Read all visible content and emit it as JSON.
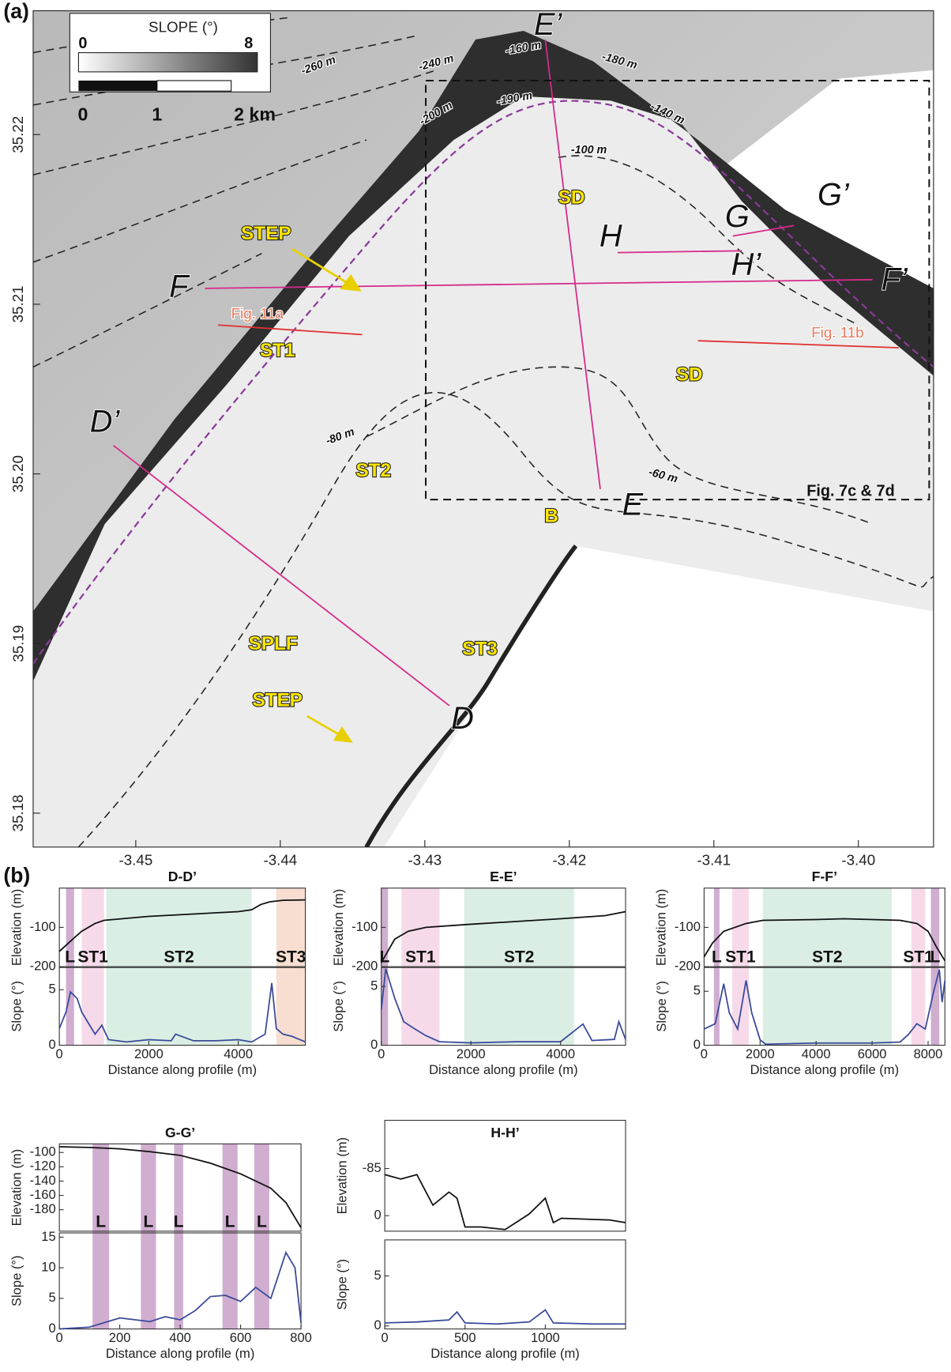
{
  "panel_a": {
    "label": "(a)",
    "colorbar": {
      "title": "SLOPE (°)",
      "min": 0,
      "max": 8
    },
    "scalebar": [
      "0",
      "1",
      "2 km"
    ],
    "xlim": [
      -3.4571,
      -3.3948
    ],
    "xticks": [
      -3.45,
      -3.44,
      -3.43,
      -3.42,
      -3.41,
      {
        "value": -3.4,
        "label": "-3.40"
      }
    ],
    "ylim": [
      35.178,
      35.2273
    ],
    "yticks": [
      35.22,
      35.21,
      {
        "value": 35.2,
        "label": "35.20"
      },
      35.19,
      35.18
    ],
    "labels": [
      "E’",
      "G’",
      "G",
      "H",
      "H’",
      "F",
      "F’",
      "D’",
      "D",
      "E",
      "STEP",
      "STEP",
      "SD",
      "SD",
      "ST1",
      "ST2",
      "ST3",
      "SPLF",
      "B",
      "Fig. 11a",
      "Fig. 11b",
      "Fig. 7c & 7d"
    ],
    "contours": [
      "-260 m",
      "-240 m",
      "-160 m",
      "-180 m",
      "-200 m",
      "-190 m",
      "-140 m",
      "-100 m",
      "-80 m",
      "-60 m"
    ]
  },
  "panel_b": {
    "label": "(b)"
  },
  "chart_data": [
    {
      "type": "profile",
      "title": "D-D’",
      "x_label": "Distance along profile (m)",
      "xlim": [
        0,
        5500
      ],
      "xticks": [
        0,
        2000,
        4000
      ],
      "elevation": {
        "y_label": "Elevation (m)",
        "ylim": [
          -200,
          0
        ],
        "yticks": [
          -200,
          -100
        ],
        "color": "#111111",
        "x": [
          0,
          300,
          500,
          800,
          1000,
          2000,
          3000,
          4000,
          4300,
          4500,
          4700,
          5000,
          5500
        ],
        "values": [
          -161,
          -130,
          -110,
          -90,
          -82,
          -72,
          -66,
          -60,
          -55,
          -42,
          -35,
          -31,
          -30
        ]
      },
      "slope": {
        "y_label": "Slope (°)",
        "ylim": [
          0,
          7
        ],
        "yticks": [
          0,
          5
        ],
        "color": "#3a4a9a",
        "x": [
          0,
          150,
          250,
          400,
          500,
          650,
          800,
          950,
          1100,
          1500,
          2000,
          2500,
          2600,
          3000,
          3500,
          4000,
          4300,
          4600,
          4750,
          4850,
          5000,
          5200,
          5500
        ],
        "values": [
          1.5,
          3,
          4.8,
          4.2,
          3,
          2,
          1,
          1.8,
          0.5,
          0.3,
          0.5,
          0.4,
          1,
          0.4,
          0.4,
          0.5,
          0.3,
          1,
          5.6,
          1.5,
          1,
          0.8,
          0.3
        ]
      },
      "bands": [
        {
          "start": 150,
          "end": 330,
          "color": "#c8a0c8",
          "label": "L"
        },
        {
          "start": 500,
          "end": 1000,
          "color": "#f5d3e6",
          "label": "ST1"
        },
        {
          "start": 1050,
          "end": 4300,
          "color": "#d3ebdf",
          "label": "ST2"
        },
        {
          "start": 4850,
          "end": 5500,
          "color": "#f6d8c8",
          "label": "ST3"
        }
      ]
    },
    {
      "type": "profile",
      "title": "E-E’",
      "x_label": "Distance along profile (m)",
      "xlim": [
        0,
        5450
      ],
      "xticks": [
        0,
        2000,
        4000
      ],
      "elevation": {
        "y_label": "Elevation (m)",
        "ylim": [
          -200,
          0
        ],
        "yticks": [
          -200,
          -100
        ],
        "color": "#111111",
        "x": [
          0,
          300,
          600,
          1000,
          2000,
          3000,
          4000,
          5000,
          5450
        ],
        "values": [
          -190,
          -130,
          -110,
          -100,
          -92,
          -85,
          -78,
          -70,
          -60
        ]
      },
      "slope": {
        "y_label": "Slope (°)",
        "ylim": [
          0,
          6.6
        ],
        "yticks": [
          0,
          5
        ],
        "color": "#3a4a9a",
        "x": [
          0,
          100,
          300,
          500,
          700,
          1000,
          1300,
          2000,
          3000,
          4000,
          4500,
          4700,
          5200,
          5300,
          5450
        ],
        "values": [
          3,
          6.5,
          4,
          2,
          1.5,
          0.8,
          0.3,
          0.2,
          0.3,
          0.3,
          1.8,
          0.4,
          0.5,
          2,
          0.5
        ]
      },
      "bands": [
        {
          "start": 0,
          "end": 150,
          "color": "#c8a0c8",
          "label": "L"
        },
        {
          "start": 450,
          "end": 1300,
          "color": "#f5d3e6",
          "label": "ST1"
        },
        {
          "start": 1850,
          "end": 4300,
          "color": "#d3ebdf",
          "label": "ST2"
        }
      ]
    },
    {
      "type": "profile",
      "title": "F-F’",
      "x_label": "Distance along profile (m)",
      "xlim": [
        0,
        8600
      ],
      "xticks": [
        0,
        2000,
        4000,
        6000,
        8000
      ],
      "elevation": {
        "y_label": "Elevation (m)",
        "ylim": [
          -200,
          0
        ],
        "yticks": [
          -200,
          -100
        ],
        "color": "#111111",
        "x": [
          0,
          300,
          700,
          1500,
          2100,
          4000,
          5000,
          6000,
          7000,
          7600,
          8000,
          8300,
          8600
        ],
        "values": [
          -175,
          -140,
          -110,
          -90,
          -82,
          -80,
          -78,
          -80,
          -82,
          -90,
          -110,
          -150,
          -185
        ]
      },
      "slope": {
        "y_label": "Slope (°)",
        "ylim": [
          0,
          7.2
        ],
        "yticks": [
          0,
          5
        ],
        "color": "#3a4a9a",
        "x": [
          0,
          400,
          700,
          900,
          1200,
          1500,
          1700,
          2000,
          2200,
          4000,
          6000,
          7000,
          7300,
          7600,
          7900,
          8200,
          8400,
          8500,
          8600
        ],
        "values": [
          1.5,
          2,
          5.7,
          3,
          1.5,
          6,
          3,
          0.5,
          0.1,
          0.2,
          0.2,
          0.3,
          1,
          2,
          1.5,
          5,
          7,
          4,
          6
        ]
      },
      "bands": [
        {
          "start": 350,
          "end": 550,
          "color": "#c8a0c8",
          "label": "L"
        },
        {
          "start": 1000,
          "end": 1600,
          "color": "#f5d3e6",
          "label": "ST1"
        },
        {
          "start": 2100,
          "end": 6700,
          "color": "#d3ebdf",
          "label": "ST2"
        },
        {
          "start": 7400,
          "end": 7900,
          "color": "#f5d3e6",
          "label": "ST1"
        },
        {
          "start": 8100,
          "end": 8400,
          "color": "#c8a0c8",
          "label": "L"
        }
      ]
    },
    {
      "type": "profile",
      "title": "G-G’",
      "x_label": "Distance along profile (m)",
      "xlim": [
        0,
        800
      ],
      "xticks": [
        0,
        200,
        400,
        600,
        800
      ],
      "elevation": {
        "y_label": "Elevation (m)",
        "ylim": [
          -210,
          -88
        ],
        "yticks": [
          -180,
          -160,
          -140,
          -120,
          -100
        ],
        "color": "#111111",
        "x": [
          0,
          100,
          200,
          300,
          400,
          500,
          600,
          700,
          750,
          800
        ],
        "values": [
          -92,
          -93,
          -95,
          -99,
          -104,
          -115,
          -130,
          -150,
          -170,
          -205
        ]
      },
      "slope": {
        "y_label": "Slope (°)",
        "ylim": [
          0,
          15.7
        ],
        "yticks": [
          0,
          5,
          10,
          15
        ],
        "color": "#3a4a9a",
        "x": [
          0,
          100,
          200,
          250,
          300,
          350,
          400,
          450,
          500,
          550,
          600,
          650,
          700,
          750,
          780,
          800
        ],
        "values": [
          0,
          0.3,
          1.8,
          1.5,
          1.2,
          2,
          1.5,
          3,
          5.3,
          5.5,
          4.5,
          6.8,
          5,
          12.5,
          10,
          1
        ]
      },
      "bands": [
        {
          "start": 110,
          "end": 165,
          "color": "#c8a0c8",
          "label": "L"
        },
        {
          "start": 270,
          "end": 320,
          "color": "#c8a0c8",
          "label": "L"
        },
        {
          "start": 380,
          "end": 410,
          "color": "#c8a0c8",
          "label": "L"
        },
        {
          "start": 540,
          "end": 590,
          "color": "#c8a0c8",
          "label": "L"
        },
        {
          "start": 645,
          "end": 695,
          "color": "#c8a0c8",
          "label": "L"
        }
      ]
    },
    {
      "type": "profile",
      "title": "H-H’",
      "x_label": "Distance along profile (m)",
      "xlim": [
        0,
        1500
      ],
      "xticks": [
        0,
        500,
        1000
      ],
      "elevation": {
        "y_label": "Elevation (m)",
        "ylim": [
          28,
          -172
        ],
        "yticks": [
          -85,
          0
        ],
        "color": "#111111",
        "x": [
          0,
          100,
          200,
          300,
          400,
          450,
          500,
          600,
          750,
          900,
          1000,
          1050,
          1100,
          1400,
          1500
        ],
        "values": [
          -74,
          -66,
          -74,
          -19,
          -42.5,
          -31.5,
          20.5,
          20.5,
          25,
          -3,
          -31.5,
          12.6,
          4.7,
          7.9,
          12.6
        ]
      },
      "slope": {
        "y_label": "Slope (°)",
        "ylim": [
          -0.3,
          8.6
        ],
        "yticks": [
          0,
          5
        ],
        "color": "#3a4a9a",
        "x": [
          0,
          200,
          400,
          450,
          500,
          700,
          900,
          1000,
          1050,
          1300,
          1500
        ],
        "values": [
          0.3,
          0.4,
          0.6,
          1.4,
          0.3,
          0.2,
          0.4,
          1.6,
          0.3,
          0.2,
          0.2
        ]
      },
      "bands": []
    }
  ]
}
